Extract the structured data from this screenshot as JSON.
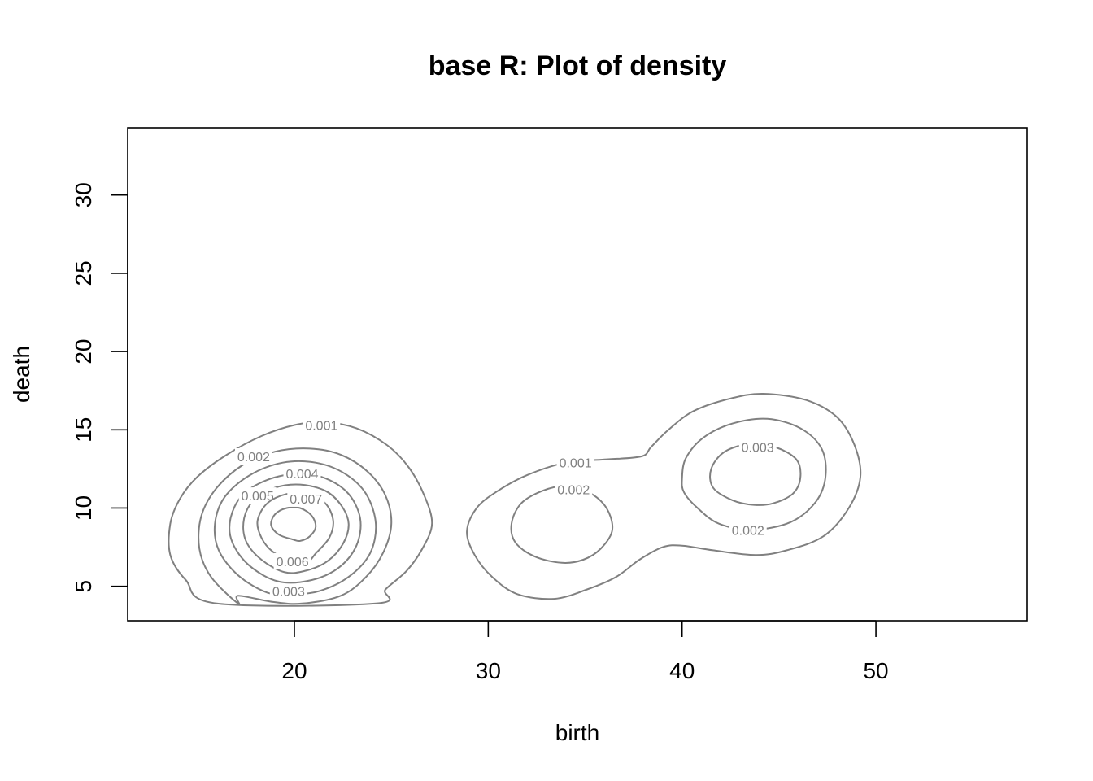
{
  "chart_data": {
    "type": "contour",
    "title": "base R: Plot of density",
    "xlabel": "birth",
    "ylabel": "death",
    "xlim": [
      11.4,
      57.8
    ],
    "ylim": [
      2.8,
      34.3
    ],
    "xticks": [
      20,
      30,
      40,
      50
    ],
    "yticks": [
      5,
      10,
      15,
      20,
      25,
      30
    ],
    "grid": false,
    "legend": "none",
    "line_color": "#808080",
    "contours": [
      {
        "level": "0.001",
        "points": [
          [
            16.0,
            3.9
          ],
          [
            14.4,
            5.4
          ],
          [
            13.6,
            7.0
          ],
          [
            13.6,
            9.0
          ],
          [
            14.1,
            10.6
          ],
          [
            15.0,
            12.0
          ],
          [
            16.5,
            13.4
          ],
          [
            18.3,
            14.6
          ],
          [
            20.0,
            15.3
          ],
          [
            21.5,
            15.5
          ],
          [
            23.2,
            15.1
          ],
          [
            24.8,
            14.0
          ],
          [
            25.9,
            12.6
          ],
          [
            26.7,
            10.8
          ],
          [
            27.1,
            9.0
          ],
          [
            26.6,
            7.4
          ],
          [
            25.8,
            6.0
          ],
          [
            24.7,
            4.8
          ],
          [
            24.2,
            3.9
          ]
        ],
        "label_at": [
          21.4,
          15.3
        ]
      },
      {
        "level": "0.002",
        "points": [
          [
            17.1,
            3.9
          ],
          [
            15.7,
            5.6
          ],
          [
            15.1,
            7.4
          ],
          [
            15.2,
            9.5
          ],
          [
            16.0,
            11.3
          ],
          [
            17.4,
            12.8
          ],
          [
            19.0,
            13.6
          ],
          [
            20.8,
            13.8
          ],
          [
            22.4,
            13.4
          ],
          [
            23.8,
            12.3
          ],
          [
            24.7,
            10.8
          ],
          [
            25.0,
            9.0
          ],
          [
            24.6,
            7.2
          ],
          [
            23.7,
            5.6
          ],
          [
            22.4,
            4.4
          ],
          [
            20.4,
            3.9
          ],
          [
            18.9,
            4.0
          ],
          [
            17.1,
            4.4
          ]
        ],
        "label_at": [
          17.9,
          13.3
        ]
      },
      {
        "level": "0.003",
        "points": [
          [
            18.6,
            4.6
          ],
          [
            17.1,
            5.7
          ],
          [
            16.1,
            7.3
          ],
          [
            15.9,
            9.0
          ],
          [
            16.4,
            10.7
          ],
          [
            17.7,
            12.1
          ],
          [
            19.4,
            12.9
          ],
          [
            21.1,
            12.9
          ],
          [
            22.6,
            12.2
          ],
          [
            23.7,
            10.9
          ],
          [
            24.2,
            9.0
          ],
          [
            23.9,
            7.1
          ],
          [
            22.8,
            5.6
          ],
          [
            21.3,
            4.7
          ],
          [
            19.9,
            4.5
          ]
        ],
        "label_at": [
          19.7,
          4.7
        ]
      },
      {
        "level": "0.004",
        "points": [
          [
            19.2,
            5.3
          ],
          [
            17.7,
            6.3
          ],
          [
            16.8,
            7.8
          ],
          [
            16.7,
            9.3
          ],
          [
            17.3,
            10.8
          ],
          [
            18.6,
            11.8
          ],
          [
            20.2,
            12.2
          ],
          [
            21.6,
            11.9
          ],
          [
            22.8,
            10.9
          ],
          [
            23.4,
            9.3
          ],
          [
            23.2,
            7.6
          ],
          [
            22.3,
            6.2
          ],
          [
            20.9,
            5.4
          ]
        ],
        "label_at": [
          20.4,
          12.2
        ]
      },
      {
        "level": "0.005",
        "points": [
          [
            19.5,
            5.9
          ],
          [
            18.3,
            6.7
          ],
          [
            17.5,
            7.9
          ],
          [
            17.4,
            9.3
          ],
          [
            17.9,
            10.5
          ],
          [
            19.0,
            11.3
          ],
          [
            20.3,
            11.5
          ],
          [
            21.6,
            11.1
          ],
          [
            22.4,
            10.2
          ],
          [
            22.8,
            9.0
          ],
          [
            22.5,
            7.7
          ],
          [
            21.7,
            6.6
          ],
          [
            20.6,
            6.0
          ]
        ],
        "label_at": [
          18.1,
          10.8
        ]
      },
      {
        "level": "0.006",
        "points": [
          [
            19.9,
            6.6
          ],
          [
            18.9,
            7.2
          ],
          [
            18.3,
            8.1
          ],
          [
            18.1,
            9.2
          ],
          [
            18.6,
            10.3
          ],
          [
            19.6,
            10.9
          ],
          [
            20.7,
            10.9
          ],
          [
            21.6,
            10.3
          ],
          [
            22.0,
            9.2
          ],
          [
            21.8,
            8.1
          ],
          [
            21.1,
            7.1
          ],
          [
            20.7,
            6.6
          ]
        ],
        "label_at": [
          19.9,
          6.6
        ]
      },
      {
        "level": "0.007",
        "points": [
          [
            19.9,
            8.0
          ],
          [
            19.2,
            8.3
          ],
          [
            18.8,
            8.9
          ],
          [
            19.0,
            9.6
          ],
          [
            19.6,
            10.0
          ],
          [
            20.3,
            10.0
          ],
          [
            20.9,
            9.5
          ],
          [
            21.1,
            8.8
          ],
          [
            20.8,
            8.2
          ],
          [
            20.3,
            7.9
          ]
        ],
        "label_at": [
          20.6,
          10.6
        ]
      },
      {
        "level": "0.001",
        "points": [
          [
            28.9,
            8.5
          ],
          [
            29.4,
            10.0
          ],
          [
            30.5,
            11.1
          ],
          [
            32.0,
            12.1
          ],
          [
            34.0,
            12.9
          ],
          [
            36.0,
            13.1
          ],
          [
            37.9,
            13.3
          ],
          [
            38.4,
            13.9
          ],
          [
            39.3,
            15.0
          ],
          [
            40.6,
            16.2
          ],
          [
            42.5,
            17.0
          ],
          [
            44.2,
            17.3
          ],
          [
            46.4,
            16.9
          ],
          [
            48.0,
            15.8
          ],
          [
            48.9,
            14.0
          ],
          [
            49.2,
            12.0
          ],
          [
            48.6,
            10.0
          ],
          [
            47.3,
            8.2
          ],
          [
            45.4,
            7.3
          ],
          [
            43.8,
            7.0
          ],
          [
            41.6,
            7.3
          ],
          [
            40.0,
            7.6
          ],
          [
            39.0,
            7.5
          ],
          [
            37.8,
            6.7
          ],
          [
            36.6,
            5.6
          ],
          [
            35.1,
            4.8
          ],
          [
            33.4,
            4.2
          ],
          [
            31.5,
            4.5
          ],
          [
            30.2,
            5.6
          ],
          [
            29.3,
            7.0
          ]
        ],
        "label_at": [
          34.5,
          12.9
        ]
      },
      {
        "level": "0.002",
        "points": [
          [
            33.8,
            6.5
          ],
          [
            32.4,
            6.9
          ],
          [
            31.4,
            7.8
          ],
          [
            31.2,
            9.0
          ],
          [
            31.7,
            10.3
          ],
          [
            32.8,
            11.1
          ],
          [
            34.0,
            11.4
          ],
          [
            35.2,
            11.0
          ],
          [
            36.1,
            10.0
          ],
          [
            36.4,
            8.6
          ],
          [
            35.8,
            7.4
          ],
          [
            34.9,
            6.7
          ]
        ],
        "label_at": [
          34.4,
          11.2
        ]
      },
      {
        "level": "0.002",
        "points": [
          [
            40.0,
            11.9
          ],
          [
            40.2,
            13.2
          ],
          [
            41.1,
            14.5
          ],
          [
            42.6,
            15.4
          ],
          [
            44.4,
            15.7
          ],
          [
            46.1,
            15.1
          ],
          [
            47.2,
            13.8
          ],
          [
            47.4,
            12.0
          ],
          [
            46.9,
            10.4
          ],
          [
            45.6,
            9.1
          ],
          [
            43.6,
            8.6
          ],
          [
            41.9,
            9.0
          ],
          [
            40.8,
            10.0
          ],
          [
            40.1,
            11.0
          ]
        ],
        "label_at": [
          43.4,
          8.6
        ]
      },
      {
        "level": "0.003",
        "points": [
          [
            43.7,
            10.2
          ],
          [
            42.6,
            10.5
          ],
          [
            41.6,
            11.3
          ],
          [
            41.5,
            12.5
          ],
          [
            42.2,
            13.6
          ],
          [
            43.5,
            14.1
          ],
          [
            44.8,
            13.9
          ],
          [
            45.9,
            13.1
          ],
          [
            46.1,
            11.9
          ],
          [
            45.7,
            10.9
          ],
          [
            44.7,
            10.3
          ]
        ],
        "label_at": [
          43.9,
          13.9
        ]
      }
    ]
  }
}
